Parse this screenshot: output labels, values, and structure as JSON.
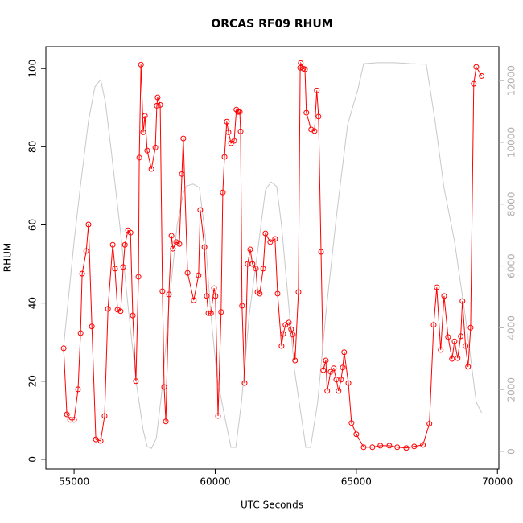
{
  "chart_data": {
    "type": "line",
    "title": "ORCAS RF09 RHUM",
    "xlabel": "UTC Seconds",
    "ylabel": "RHUM",
    "xlim": [
      54000,
      70050
    ],
    "ylim": [
      -2.5,
      105.6
    ],
    "y2lim": [
      -573,
      13099
    ],
    "xticks": [
      55000,
      60000,
      65000,
      70000
    ],
    "yticks": [
      0,
      20,
      40,
      60,
      80,
      100
    ],
    "y2ticks": [
      0,
      2000,
      4000,
      6000,
      8000,
      10000,
      12000
    ],
    "series": [
      {
        "color": "#ff0000",
        "markers": true,
        "x": [
          54630,
          54745,
          54860,
          55000,
          55140,
          55230,
          55285,
          55430,
          55510,
          55630,
          55770,
          55940,
          56080,
          56200,
          56370,
          56450,
          56540,
          56650,
          56740,
          56800,
          56910,
          57000,
          57080,
          57190,
          57280,
          57310,
          57370,
          57450,
          57510,
          57590,
          57740,
          57880,
          57930,
          57960,
          58050,
          58130,
          58190,
          58250,
          58360,
          58450,
          58500,
          58620,
          58730,
          58820,
          58870,
          59020,
          59240,
          59410,
          59470,
          59620,
          59700,
          59760,
          59850,
          59960,
          60010,
          60100,
          60210,
          60270,
          60330,
          60410,
          60470,
          60560,
          60670,
          60750,
          60810,
          60870,
          60900,
          60950,
          61040,
          61150,
          61240,
          61320,
          61440,
          61500,
          61580,
          61700,
          61780,
          61950,
          62120,
          62210,
          62350,
          62410,
          62490,
          62610,
          62690,
          62750,
          62830,
          62950,
          63010,
          63030,
          63120,
          63180,
          63230,
          63400,
          63520,
          63600,
          63660,
          63750,
          63830,
          63920,
          63970,
          64090,
          64200,
          64290,
          64370,
          64460,
          64520,
          64570,
          64720,
          64830,
          65000,
          65260,
          65570,
          65850,
          66170,
          66450,
          66770,
          67050,
          67360,
          67590,
          67740,
          67850,
          67990,
          68110,
          68250,
          68390,
          68480,
          68590,
          68700,
          68760,
          68870,
          68960,
          69050,
          69160,
          69250,
          69440
        ],
        "values": [
          28.4,
          11.5,
          10.1,
          10.1,
          17.9,
          32.3,
          47.5,
          53.3,
          60.1,
          34,
          5.1,
          4.7,
          11.1,
          38.5,
          54.9,
          48.8,
          38.3,
          37.9,
          49.2,
          54.9,
          58.6,
          58,
          36.8,
          20,
          46.7,
          77.2,
          101,
          83.7,
          87.9,
          79,
          74.3,
          79.8,
          90.5,
          92.6,
          90.7,
          43,
          18.5,
          9.7,
          42.2,
          57.2,
          53.9,
          55.6,
          55.1,
          73,
          82.1,
          47.7,
          40.7,
          47.1,
          63.8,
          54.3,
          41.8,
          37.4,
          37.4,
          43.8,
          41.8,
          11.1,
          37.7,
          68.3,
          77.4,
          86.4,
          83.7,
          80.9,
          81.5,
          89.5,
          88.9,
          88.9,
          83.9,
          39.3,
          19.5,
          50,
          53.7,
          50,
          48.8,
          42.8,
          42.4,
          48.8,
          57.8,
          55.6,
          56.4,
          42.4,
          29,
          32.1,
          34.4,
          35,
          33.3,
          31.9,
          25.3,
          42.8,
          100.2,
          101.4,
          100,
          99.8,
          88.7,
          84.4,
          84,
          94.4,
          87.7,
          53.1,
          22.8,
          25.3,
          17.5,
          22.4,
          23.3,
          20.4,
          17.5,
          20.4,
          23.5,
          27.4,
          19.5,
          9.3,
          6.4,
          3.1,
          3.1,
          3.5,
          3.5,
          3.1,
          2.9,
          3.3,
          3.7,
          9.1,
          34.4,
          44,
          28,
          41.8,
          31.3,
          25.7,
          30.2,
          25.9,
          31.5,
          40.5,
          29,
          23.7,
          33.7,
          96.1,
          100.4,
          98.1
        ]
      },
      {
        "color": "#c8c8c8",
        "axis": "y2",
        "x": [
          54630,
          54800,
          55000,
          55230,
          55510,
          55740,
          55940,
          56110,
          56310,
          56650,
          56940,
          57220,
          57450,
          57590,
          57740,
          57910,
          58130,
          58360,
          58650,
          58870,
          58990,
          59220,
          59440,
          59640,
          59840,
          60070,
          60350,
          60560,
          60730,
          60930,
          61210,
          61550,
          61780,
          61980,
          62180,
          62350,
          62580,
          62810,
          63060,
          63210,
          63380,
          63630,
          63920,
          64290,
          64690,
          65060,
          65260,
          65770,
          66340,
          66910,
          67480,
          67790,
          68110,
          68480,
          68850,
          69250,
          69440
        ],
        "values": [
          3410,
          4970,
          6800,
          8620,
          10700,
          11800,
          12030,
          11300,
          9790,
          7060,
          4450,
          2110,
          680,
          160,
          100,
          420,
          2110,
          4710,
          7320,
          8360,
          8590,
          8650,
          8540,
          7060,
          4450,
          2370,
          1070,
          130,
          130,
          1590,
          4450,
          6800,
          8460,
          8720,
          8570,
          7320,
          4970,
          2630,
          1070,
          130,
          130,
          1590,
          4450,
          7580,
          10570,
          11740,
          12550,
          12580,
          12580,
          12550,
          12530,
          10700,
          8520,
          6800,
          4450,
          1590,
          1250
        ]
      }
    ]
  }
}
